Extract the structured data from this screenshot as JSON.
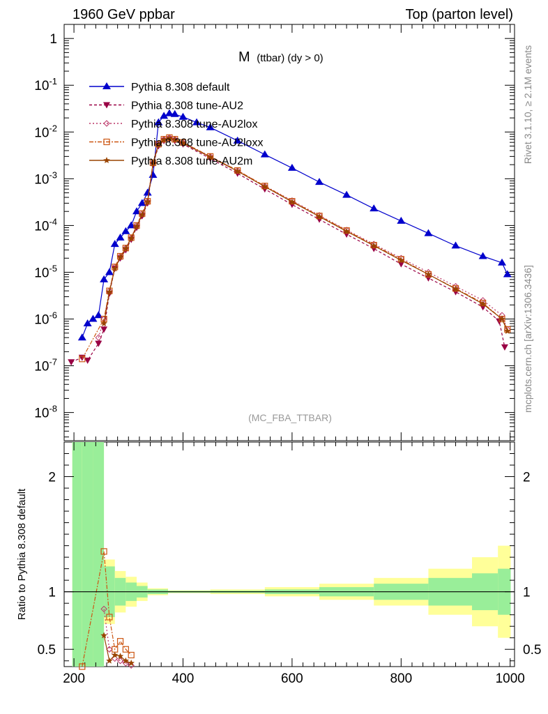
{
  "header": {
    "left_title": "1960 GeV ppbar",
    "right_title": "Top (parton level)"
  },
  "side_labels": {
    "rivet": "Rivet 3.1.10, ≥ 2.1M events",
    "mcplots": "mcplots.cern.ch [arXiv:1306.3436]"
  },
  "chart_data": {
    "type": "line",
    "title": "M (ttbar) (dy > 0)",
    "title_main": "M",
    "title_sub": "(ttbar) (dy > 0)",
    "analysis_label": "(MC_FBA_TTBAR)",
    "ratio_ylabel": "Ratio to Pythia 8.308 default",
    "xlim": [
      182,
      1008
    ],
    "ylim_log": [
      2.5e-09,
      2.0
    ],
    "ratio_ylim": [
      0.35,
      2.3
    ],
    "x_ticks": [
      "200",
      "400",
      "600",
      "800",
      "1000"
    ],
    "y_ticks_main": [
      "1",
      "10^-1",
      "10^-2",
      "10^-3",
      "10^-4",
      "10^-5",
      "10^-6",
      "10^-7",
      "10^-8"
    ],
    "y_ticks_ratio": [
      "0.5",
      "1",
      "2"
    ],
    "legend": [
      "Pythia 8.308 default",
      "Pythia 8.308 tune-AU2",
      "Pythia 8.308 tune-AU2lox",
      "Pythia 8.308 tune-AU2loxx",
      "Pythia 8.308 tune-AU2m"
    ],
    "series_colors": [
      "#0000cc",
      "#990044",
      "#bb3366",
      "#cc5511",
      "#994400"
    ],
    "band_colors": {
      "inner": "#99ee99",
      "outer": "#ffff99"
    },
    "series": [
      {
        "name": "Pythia 8.308 default",
        "points": [
          [
            215,
            4e-07
          ],
          [
            225,
            8e-07
          ],
          [
            235,
            1e-06
          ],
          [
            245,
            1.2e-06
          ],
          [
            255,
            7e-06
          ],
          [
            265,
            1e-05
          ],
          [
            275,
            4e-05
          ],
          [
            285,
            5.5e-05
          ],
          [
            295,
            7.5e-05
          ],
          [
            305,
            0.0001
          ],
          [
            315,
            0.0002
          ],
          [
            325,
            0.0003
          ],
          [
            335,
            0.0005
          ],
          [
            345,
            0.0012
          ],
          [
            355,
            0.016
          ],
          [
            365,
            0.022
          ],
          [
            375,
            0.025
          ],
          [
            385,
            0.024
          ],
          [
            400,
            0.021
          ],
          [
            425,
            0.016
          ],
          [
            450,
            0.0125
          ],
          [
            500,
            0.0065
          ],
          [
            550,
            0.0033
          ],
          [
            600,
            0.0017
          ],
          [
            650,
            0.00085
          ],
          [
            700,
            0.00045
          ],
          [
            750,
            0.00023
          ],
          [
            800,
            0.000125
          ],
          [
            850,
            6.8e-05
          ],
          [
            900,
            3.7e-05
          ],
          [
            950,
            2.2e-05
          ],
          [
            985,
            1.6e-05
          ],
          [
            995,
            9e-06
          ]
        ]
      },
      {
        "name": "Pythia 8.308 tune-AU2",
        "points": [
          [
            195,
            1.2e-07
          ],
          [
            215,
            1.5e-07
          ],
          [
            225,
            1.3e-07
          ],
          [
            245,
            3e-07
          ],
          [
            255,
            6e-07
          ],
          [
            265,
            3.5e-06
          ],
          [
            275,
            1.2e-05
          ],
          [
            285,
            2e-05
          ],
          [
            295,
            3e-05
          ],
          [
            305,
            5e-05
          ],
          [
            315,
            9e-05
          ],
          [
            325,
            0.00016
          ],
          [
            335,
            0.0003
          ],
          [
            345,
            0.002
          ],
          [
            355,
            0.005
          ],
          [
            365,
            0.0065
          ],
          [
            375,
            0.007
          ],
          [
            385,
            0.0065
          ],
          [
            400,
            0.0055
          ],
          [
            450,
            0.0027
          ],
          [
            500,
            0.0013
          ],
          [
            550,
            0.0006
          ],
          [
            600,
            0.00028
          ],
          [
            650,
            0.000135
          ],
          [
            700,
            6.5e-05
          ],
          [
            750,
            3.2e-05
          ],
          [
            800,
            1.5e-05
          ],
          [
            850,
            7.5e-06
          ],
          [
            900,
            3.8e-06
          ],
          [
            950,
            1.8e-06
          ],
          [
            980,
            9e-07
          ],
          [
            990,
            2.5e-07
          ]
        ]
      },
      {
        "name": "Pythia 8.308 tune-AU2lox",
        "points": [
          [
            245,
            4e-07
          ],
          [
            255,
            1e-06
          ],
          [
            265,
            4e-06
          ],
          [
            275,
            1.3e-05
          ],
          [
            285,
            2.2e-05
          ],
          [
            295,
            3.3e-05
          ],
          [
            305,
            5.5e-05
          ],
          [
            315,
            0.0001
          ],
          [
            325,
            0.00018
          ],
          [
            335,
            0.00033
          ],
          [
            345,
            0.0022
          ],
          [
            355,
            0.0055
          ],
          [
            365,
            0.007
          ],
          [
            375,
            0.0076
          ],
          [
            385,
            0.007
          ],
          [
            400,
            0.006
          ],
          [
            450,
            0.003
          ],
          [
            500,
            0.0015
          ],
          [
            550,
            0.0007
          ],
          [
            600,
            0.00034
          ],
          [
            650,
            0.000165
          ],
          [
            700,
            8e-05
          ],
          [
            750,
            4e-05
          ],
          [
            800,
            2e-05
          ],
          [
            850,
            1e-05
          ],
          [
            900,
            5e-06
          ],
          [
            950,
            2.5e-06
          ],
          [
            985,
            1.2e-06
          ],
          [
            995,
            6e-07
          ]
        ]
      },
      {
        "name": "Pythia 8.308 tune-AU2loxx",
        "points": [
          [
            215,
            1.4e-07
          ],
          [
            255,
            1e-06
          ],
          [
            265,
            4e-06
          ],
          [
            275,
            1.3e-05
          ],
          [
            285,
            2.2e-05
          ],
          [
            295,
            3.3e-05
          ],
          [
            305,
            5.5e-05
          ],
          [
            315,
            0.0001
          ],
          [
            325,
            0.00018
          ],
          [
            335,
            0.00033
          ],
          [
            345,
            0.0022
          ],
          [
            355,
            0.0055
          ],
          [
            365,
            0.007
          ],
          [
            375,
            0.0076
          ],
          [
            385,
            0.007
          ],
          [
            400,
            0.006
          ],
          [
            450,
            0.003
          ],
          [
            500,
            0.0015
          ],
          [
            550,
            0.0007
          ],
          [
            600,
            0.00033
          ],
          [
            650,
            0.00016
          ],
          [
            700,
            7.8e-05
          ],
          [
            750,
            3.8e-05
          ],
          [
            800,
            1.9e-05
          ],
          [
            850,
            9e-06
          ],
          [
            900,
            4.5e-06
          ],
          [
            950,
            2.2e-06
          ],
          [
            985,
            1e-06
          ],
          [
            995,
            6e-07
          ]
        ]
      },
      {
        "name": "Pythia 8.308 tune-AU2m",
        "points": [
          [
            255,
            8e-07
          ],
          [
            265,
            3.8e-06
          ],
          [
            275,
            1.2e-05
          ],
          [
            285,
            2.1e-05
          ],
          [
            295,
            3.2e-05
          ],
          [
            305,
            5.3e-05
          ],
          [
            315,
            9.5e-05
          ],
          [
            325,
            0.00017
          ],
          [
            335,
            0.00032
          ],
          [
            345,
            0.0021
          ],
          [
            355,
            0.0053
          ],
          [
            365,
            0.0068
          ],
          [
            375,
            0.0073
          ],
          [
            385,
            0.0068
          ],
          [
            400,
            0.0058
          ],
          [
            450,
            0.0029
          ],
          [
            500,
            0.00145
          ],
          [
            550,
            0.00068
          ],
          [
            600,
            0.00032
          ],
          [
            650,
            0.000155
          ],
          [
            700,
            7.5e-05
          ],
          [
            750,
            3.7e-05
          ],
          [
            800,
            1.8e-05
          ],
          [
            850,
            9e-06
          ],
          [
            900,
            4.4e-06
          ],
          [
            950,
            2.1e-06
          ],
          [
            985,
            1e-06
          ],
          [
            995,
            5.5e-07
          ]
        ]
      }
    ],
    "ratio_series": [
      {
        "name": "Pythia 8.308 tune-AU2lox",
        "points": [
          [
            255,
            0.85
          ],
          [
            265,
            0.5
          ],
          [
            275,
            0.42
          ],
          [
            285,
            0.4
          ],
          [
            295,
            0.38
          ],
          [
            305,
            0.36
          ]
        ]
      },
      {
        "name": "Pythia 8.308 tune-AU2loxx",
        "points": [
          [
            215,
            0.35
          ],
          [
            255,
            1.35
          ],
          [
            265,
            0.78
          ],
          [
            275,
            0.5
          ],
          [
            285,
            0.57
          ],
          [
            295,
            0.5
          ],
          [
            305,
            0.45
          ]
        ]
      },
      {
        "name": "Pythia 8.308 tune-AU2m",
        "points": [
          [
            255,
            0.62
          ],
          [
            265,
            0.4
          ],
          [
            275,
            0.45
          ],
          [
            285,
            0.44
          ],
          [
            295,
            0.4
          ],
          [
            305,
            0.38
          ]
        ]
      }
    ],
    "ratio_band": [
      [
        205,
        2.0,
        2.3
      ],
      [
        225,
        2.0,
        2.3
      ],
      [
        245,
        1.8,
        2.3
      ],
      [
        265,
        0.22,
        0.28
      ],
      [
        285,
        0.12,
        0.18
      ],
      [
        305,
        0.08,
        0.13
      ],
      [
        325,
        0.05,
        0.08
      ],
      [
        345,
        0.02,
        0.03
      ],
      [
        400,
        0.008,
        0.012
      ],
      [
        500,
        0.01,
        0.02
      ],
      [
        600,
        0.02,
        0.04
      ],
      [
        700,
        0.04,
        0.07
      ],
      [
        800,
        0.07,
        0.12
      ],
      [
        900,
        0.12,
        0.2
      ],
      [
        960,
        0.16,
        0.3
      ],
      [
        995,
        0.2,
        0.4
      ]
    ]
  }
}
